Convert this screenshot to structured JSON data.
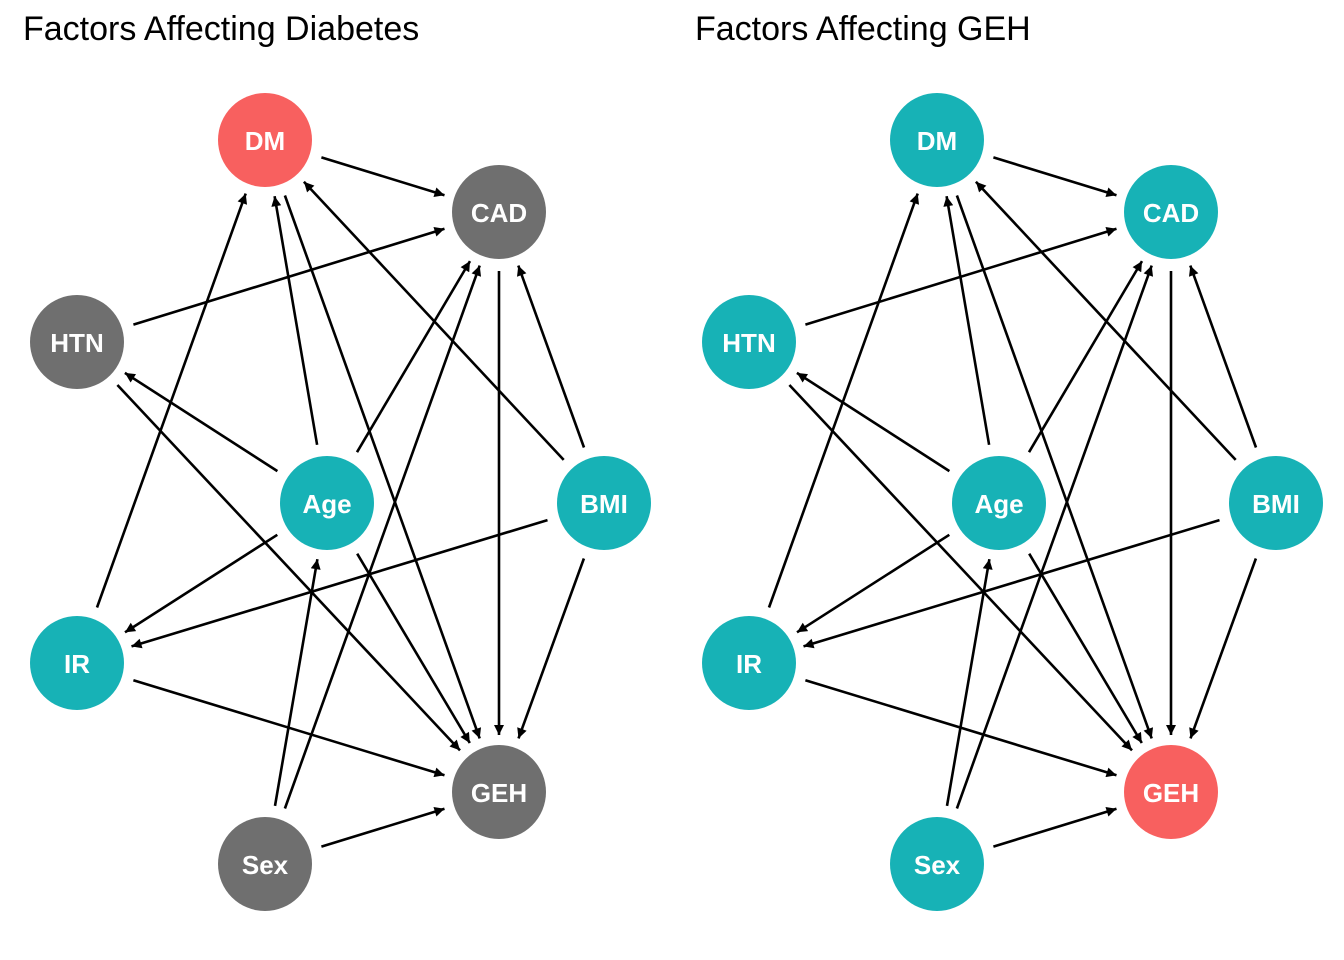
{
  "colors": {
    "outcome": "#F8605F",
    "other": "#6F6F6F",
    "exposure": "#17B2B6",
    "edge": "#000000",
    "label": "#FFFFFF"
  },
  "panels": [
    {
      "id": "left",
      "title": "Factors Affecting Diabetes",
      "nodes": [
        {
          "id": "DM",
          "label": "DM",
          "role": "outcome"
        },
        {
          "id": "CAD",
          "label": "CAD",
          "role": "other"
        },
        {
          "id": "HTN",
          "label": "HTN",
          "role": "other"
        },
        {
          "id": "Age",
          "label": "Age",
          "role": "exposure"
        },
        {
          "id": "BMI",
          "label": "BMI",
          "role": "exposure"
        },
        {
          "id": "IR",
          "label": "IR",
          "role": "exposure"
        },
        {
          "id": "GEH",
          "label": "GEH",
          "role": "other"
        },
        {
          "id": "Sex",
          "label": "Sex",
          "role": "other"
        }
      ]
    },
    {
      "id": "right",
      "title": "Factors Affecting GEH",
      "nodes": [
        {
          "id": "DM",
          "label": "DM",
          "role": "exposure"
        },
        {
          "id": "CAD",
          "label": "CAD",
          "role": "exposure"
        },
        {
          "id": "HTN",
          "label": "HTN",
          "role": "exposure"
        },
        {
          "id": "Age",
          "label": "Age",
          "role": "exposure"
        },
        {
          "id": "BMI",
          "label": "BMI",
          "role": "exposure"
        },
        {
          "id": "IR",
          "label": "IR",
          "role": "exposure"
        },
        {
          "id": "GEH",
          "label": "GEH",
          "role": "outcome"
        },
        {
          "id": "Sex",
          "label": "Sex",
          "role": "exposure"
        }
      ]
    }
  ],
  "edges": [
    [
      "DM",
      "CAD"
    ],
    [
      "DM",
      "GEH"
    ],
    [
      "HTN",
      "CAD"
    ],
    [
      "HTN",
      "GEH"
    ],
    [
      "Age",
      "DM"
    ],
    [
      "Age",
      "CAD"
    ],
    [
      "Age",
      "HTN"
    ],
    [
      "Age",
      "IR"
    ],
    [
      "Age",
      "GEH"
    ],
    [
      "BMI",
      "DM"
    ],
    [
      "BMI",
      "CAD"
    ],
    [
      "BMI",
      "IR"
    ],
    [
      "BMI",
      "GEH"
    ],
    [
      "IR",
      "DM"
    ],
    [
      "IR",
      "GEH"
    ],
    [
      "CAD",
      "GEH"
    ],
    [
      "Sex",
      "Age"
    ],
    [
      "Sex",
      "CAD"
    ],
    [
      "Sex",
      "GEH"
    ]
  ]
}
